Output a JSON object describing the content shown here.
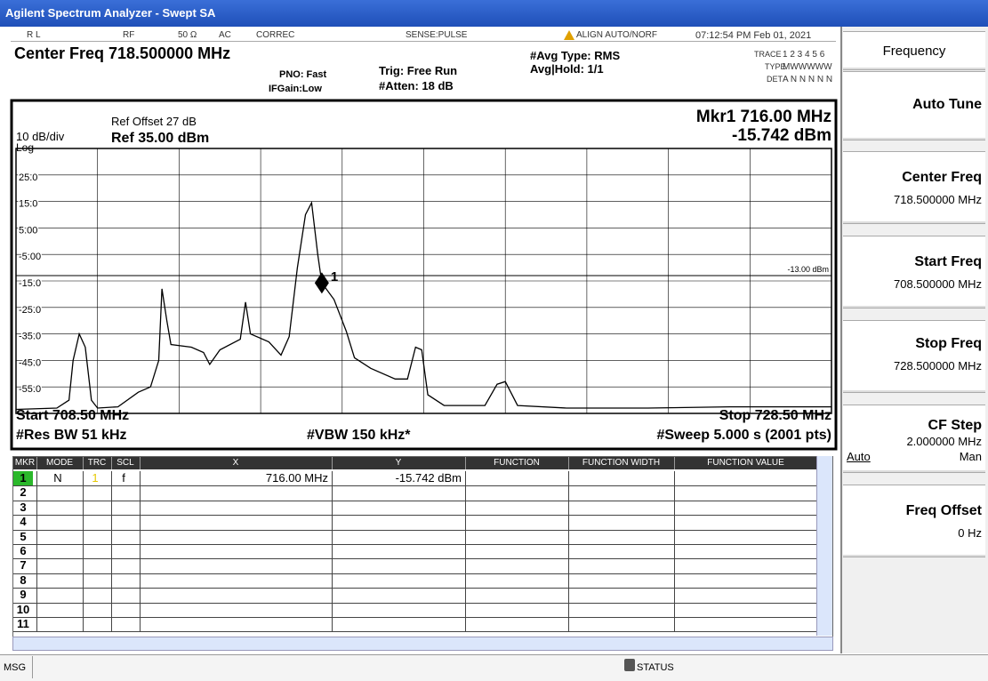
{
  "window": {
    "title": "Agilent Spectrum Analyzer - Swept SA"
  },
  "status_bar": {
    "rl": "R L",
    "rf": "RF",
    "impedance": "50 Ω",
    "coupling": "AC",
    "correc": "CORREC",
    "sense": "SENSE:PULSE",
    "align": "ALIGN AUTO/NORF",
    "datetime": "07:12:54 PM Feb 01, 2021"
  },
  "settings": {
    "center_freq": "Center Freq 718.500000 MHz",
    "pno": "PNO: Fast",
    "ifgain": "IFGain:Low",
    "trig": "Trig: Free Run",
    "atten": "#Atten: 18 dB",
    "avg_type": "#Avg Type: RMS",
    "avg_hold": "Avg|Hold: 1/1",
    "trace_label": "TRACE",
    "trace_values": "1 2 3 4 5 6",
    "type_label": "TYPE",
    "type_values": "MWWWWW",
    "det_label": "DET",
    "det_values": "A N N N N N"
  },
  "chart_data": {
    "type": "line",
    "ref_offset": "Ref Offset 27 dB",
    "scale": "10 dB/div",
    "ref_level": "Ref 35.00 dBm",
    "scale_type": "Log",
    "marker_readout_freq": "Mkr1 716.00 MHz",
    "marker_readout_level": "-15.742 dBm",
    "start": "Start 708.50 MHz",
    "stop": "Stop 728.50 MHz",
    "rbw": "#Res BW 51 kHz",
    "vbw": "#VBW 150 kHz*",
    "sweep": "#Sweep  5.000 s (2001 pts)",
    "xlim": [
      708.5,
      728.5
    ],
    "ylim": [
      -65,
      35
    ],
    "yticks": [
      {
        "value": 25,
        "label": "25.0"
      },
      {
        "value": 15,
        "label": "15.0"
      },
      {
        "value": 5,
        "label": "5.00"
      },
      {
        "value": -5,
        "label": "-5.00"
      },
      {
        "value": -15,
        "label": "-15.0"
      },
      {
        "value": -25,
        "label": "-25.0"
      },
      {
        "value": -35,
        "label": "-35.0"
      },
      {
        "value": -45,
        "label": "-45.0"
      },
      {
        "value": -55,
        "label": "-55.0"
      }
    ],
    "grid": true,
    "color": "#000000",
    "x": [
      708.5,
      709.5,
      709.8,
      709.9,
      710.05,
      710.2,
      710.35,
      710.5,
      711.0,
      711.5,
      711.8,
      712.0,
      712.08,
      712.2,
      712.3,
      712.8,
      713.1,
      713.25,
      713.5,
      714.0,
      714.13,
      714.25,
      714.7,
      715.0,
      715.2,
      715.4,
      715.6,
      715.75,
      715.9,
      716.0,
      716.3,
      716.6,
      716.8,
      717.2,
      717.8,
      718.1,
      718.3,
      718.45,
      718.6,
      719.0,
      720.0,
      720.3,
      720.5,
      720.8,
      722.0,
      724.0,
      726.0,
      728.5
    ],
    "values": [
      -63.5,
      -63,
      -60,
      -45,
      -35,
      -40,
      -60,
      -63,
      -62.5,
      -57,
      -55,
      -45,
      -18,
      -30,
      -39,
      -40,
      -42,
      -46.5,
      -41,
      -37,
      -23,
      -35,
      -38,
      -43,
      -36,
      -10,
      10,
      14.5,
      -5,
      -15.742,
      -22,
      -34,
      -44,
      -48,
      -52,
      -52,
      -40,
      -41,
      -58,
      -62,
      -62,
      -54,
      -53,
      -62,
      -63,
      -63,
      -62.5,
      -62.5
    ],
    "display_line": {
      "value": -13,
      "label": "-13.00 dBm"
    },
    "marker": {
      "label": "1",
      "x": 716.0,
      "y": -15.742
    }
  },
  "marker_table": {
    "headers": [
      "MKR",
      "MODE",
      "TRC",
      "SCL",
      "X",
      "Y",
      "FUNCTION",
      "FUNCTION WIDTH",
      "FUNCTION VALUE"
    ],
    "rows": [
      {
        "mkr": "1",
        "mode": "N",
        "trc": "1",
        "scl": "f",
        "x": "716.00 MHz",
        "y": "-15.742 dBm"
      },
      {
        "mkr": "2"
      },
      {
        "mkr": "3"
      },
      {
        "mkr": "4"
      },
      {
        "mkr": "5"
      },
      {
        "mkr": "6"
      },
      {
        "mkr": "7"
      },
      {
        "mkr": "8"
      },
      {
        "mkr": "9"
      },
      {
        "mkr": "10"
      },
      {
        "mkr": "11"
      }
    ]
  },
  "softkeys": {
    "menu": "Frequency",
    "auto_tune": "Auto Tune",
    "center_freq": {
      "label": "Center Freq",
      "value": "718.500000 MHz"
    },
    "start_freq": {
      "label": "Start Freq",
      "value": "708.500000 MHz"
    },
    "stop_freq": {
      "label": "Stop Freq",
      "value": "728.500000 MHz"
    },
    "cf_step": {
      "label": "CF Step",
      "value": "2.000000 MHz",
      "auto": "Auto",
      "man": "Man"
    },
    "freq_offset": {
      "label": "Freq Offset",
      "value": "0 Hz"
    }
  },
  "bottom_bar": {
    "msg": "MSG",
    "status": "STATUS"
  }
}
